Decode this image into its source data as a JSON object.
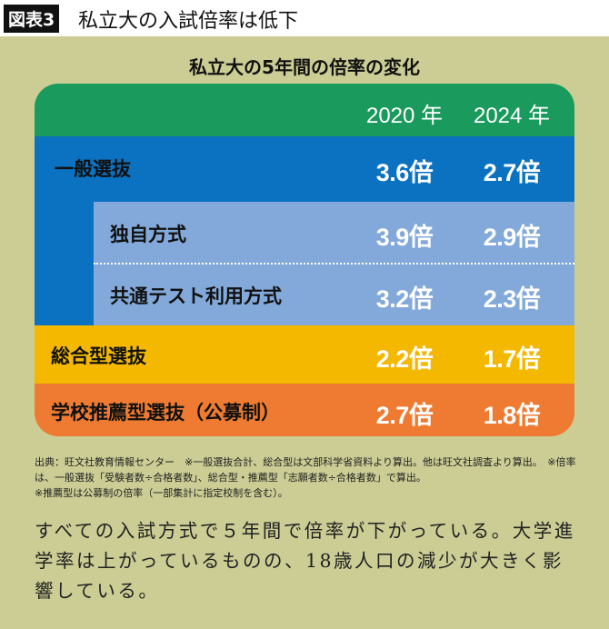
{
  "header": {
    "label": "図表3",
    "title": "私立大の入試倍率は低下"
  },
  "table": {
    "title": "私立大の5年間の倍率の変化",
    "columns": [
      "2020 年",
      "2024 年"
    ],
    "rows": [
      [
        "一般選抜",
        "3.6倍",
        "2.7倍"
      ],
      [
        "独自方式",
        "3.9倍",
        "2.9倍"
      ],
      [
        "共通テスト利用方式",
        "3.2倍",
        "2.3倍"
      ],
      [
        "総合型選抜",
        "2.2倍",
        "1.7倍"
      ],
      [
        "学校推薦型選抜（公募制）",
        "2.7倍",
        "1.8倍"
      ]
    ]
  },
  "notes": [
    "出典：旺文社教育情報センター　※一般選抜合計、総合型は文部科学省資料より算出。他は旺文社調査より算出。　※倍率は、一般選抜「受験者数÷合格者数」、総合型・推薦型「志願者数÷合格者数」で算出。",
    "※推薦型は公募制の倍率（一部集計に指定校制を含む）。"
  ],
  "body": "すべての入試方式で５年間で倍率が下がっている。大学進学率は上がっているものの、18歳人口の減少が大きく影響している。"
}
